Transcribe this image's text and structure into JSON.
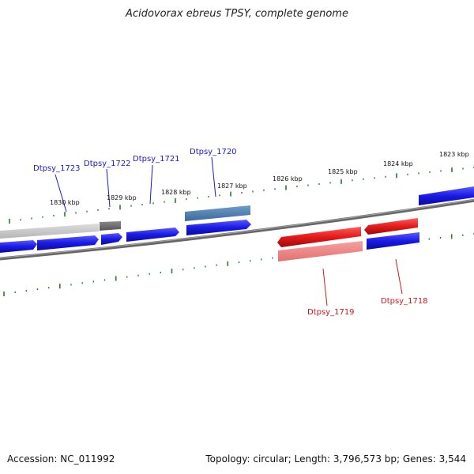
{
  "title": "Acidovorax ebreus TPSY, complete genome",
  "accession_text": "Accession: NC_011992",
  "summary_text": "Topology: circular; Length: 3,796,573 bp; Genes: 3,544",
  "colors": {
    "forward_gene": "#1a1ae6",
    "reverse_gene": "#e61a1a",
    "ruler_tick": "#2a7a2a",
    "backbone": "#777777",
    "forward_label": "#1a1acc",
    "reverse_label": "#cc1a1a"
  },
  "scale_ticks": [
    {
      "label": "1830 kbp"
    },
    {
      "label": "1829 kbp"
    },
    {
      "label": "1828 kbp"
    },
    {
      "label": "1827 kbp"
    },
    {
      "label": "1826 kbp"
    },
    {
      "label": "1825 kbp"
    },
    {
      "label": "1824 kbp"
    },
    {
      "label": "1823 kbp"
    }
  ],
  "gene_labels": [
    {
      "label": "Dtpsy_1723",
      "strand": "forward"
    },
    {
      "label": "Dtpsy_1722",
      "strand": "forward"
    },
    {
      "label": "Dtpsy_1721",
      "strand": "forward"
    },
    {
      "label": "Dtpsy_1720",
      "strand": "forward"
    },
    {
      "label": "Dtpsy_1719",
      "strand": "reverse"
    },
    {
      "label": "Dtpsy_1718",
      "strand": "reverse"
    }
  ]
}
